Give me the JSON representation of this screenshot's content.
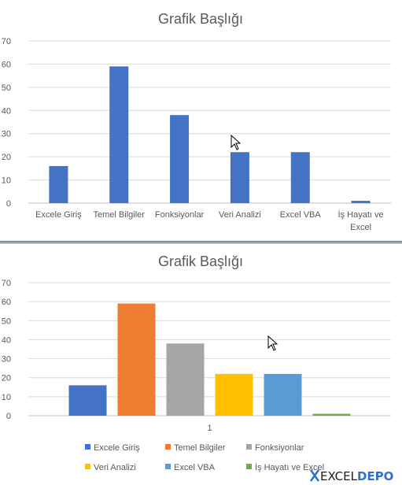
{
  "chart_data": [
    {
      "type": "bar",
      "title": "Grafik Başlığı",
      "categories": [
        "Excele Giriş",
        "Temel Bilgiler",
        "Fonksiyonlar",
        "Veri Analizi",
        "Excel VBA",
        "İş Hayatı ve Excel"
      ],
      "values": [
        16,
        59,
        38,
        22,
        22,
        1
      ],
      "ylim": [
        0,
        70
      ],
      "yticks": [
        0,
        10,
        20,
        30,
        40,
        50,
        60,
        70
      ],
      "grid": true,
      "color": "#4472c4"
    },
    {
      "type": "bar",
      "title": "Grafik Başlığı",
      "categories": [
        "1"
      ],
      "series": [
        {
          "name": "Excele Giriş",
          "values": [
            16
          ],
          "color": "#4472c4"
        },
        {
          "name": "Temel Bilgiler",
          "values": [
            59
          ],
          "color": "#ed7d31"
        },
        {
          "name": "Fonksiyonlar",
          "values": [
            38
          ],
          "color": "#a5a5a5"
        },
        {
          "name": "Veri Analizi",
          "values": [
            22
          ],
          "color": "#ffc000"
        },
        {
          "name": "Excel VBA",
          "values": [
            22
          ],
          "color": "#5b9bd5"
        },
        {
          "name": "İş Hayatı ve Excel",
          "values": [
            1
          ],
          "color": "#70ad47"
        }
      ],
      "ylim": [
        0,
        70
      ],
      "yticks": [
        0,
        10,
        20,
        30,
        40,
        50,
        60,
        70
      ],
      "grid": true,
      "legend": "bottom"
    }
  ],
  "logo": {
    "text_a": "EXCEL",
    "text_b": "DEPO",
    "color_a": "#1a1a1a",
    "color_b": "#2e6fd0"
  }
}
